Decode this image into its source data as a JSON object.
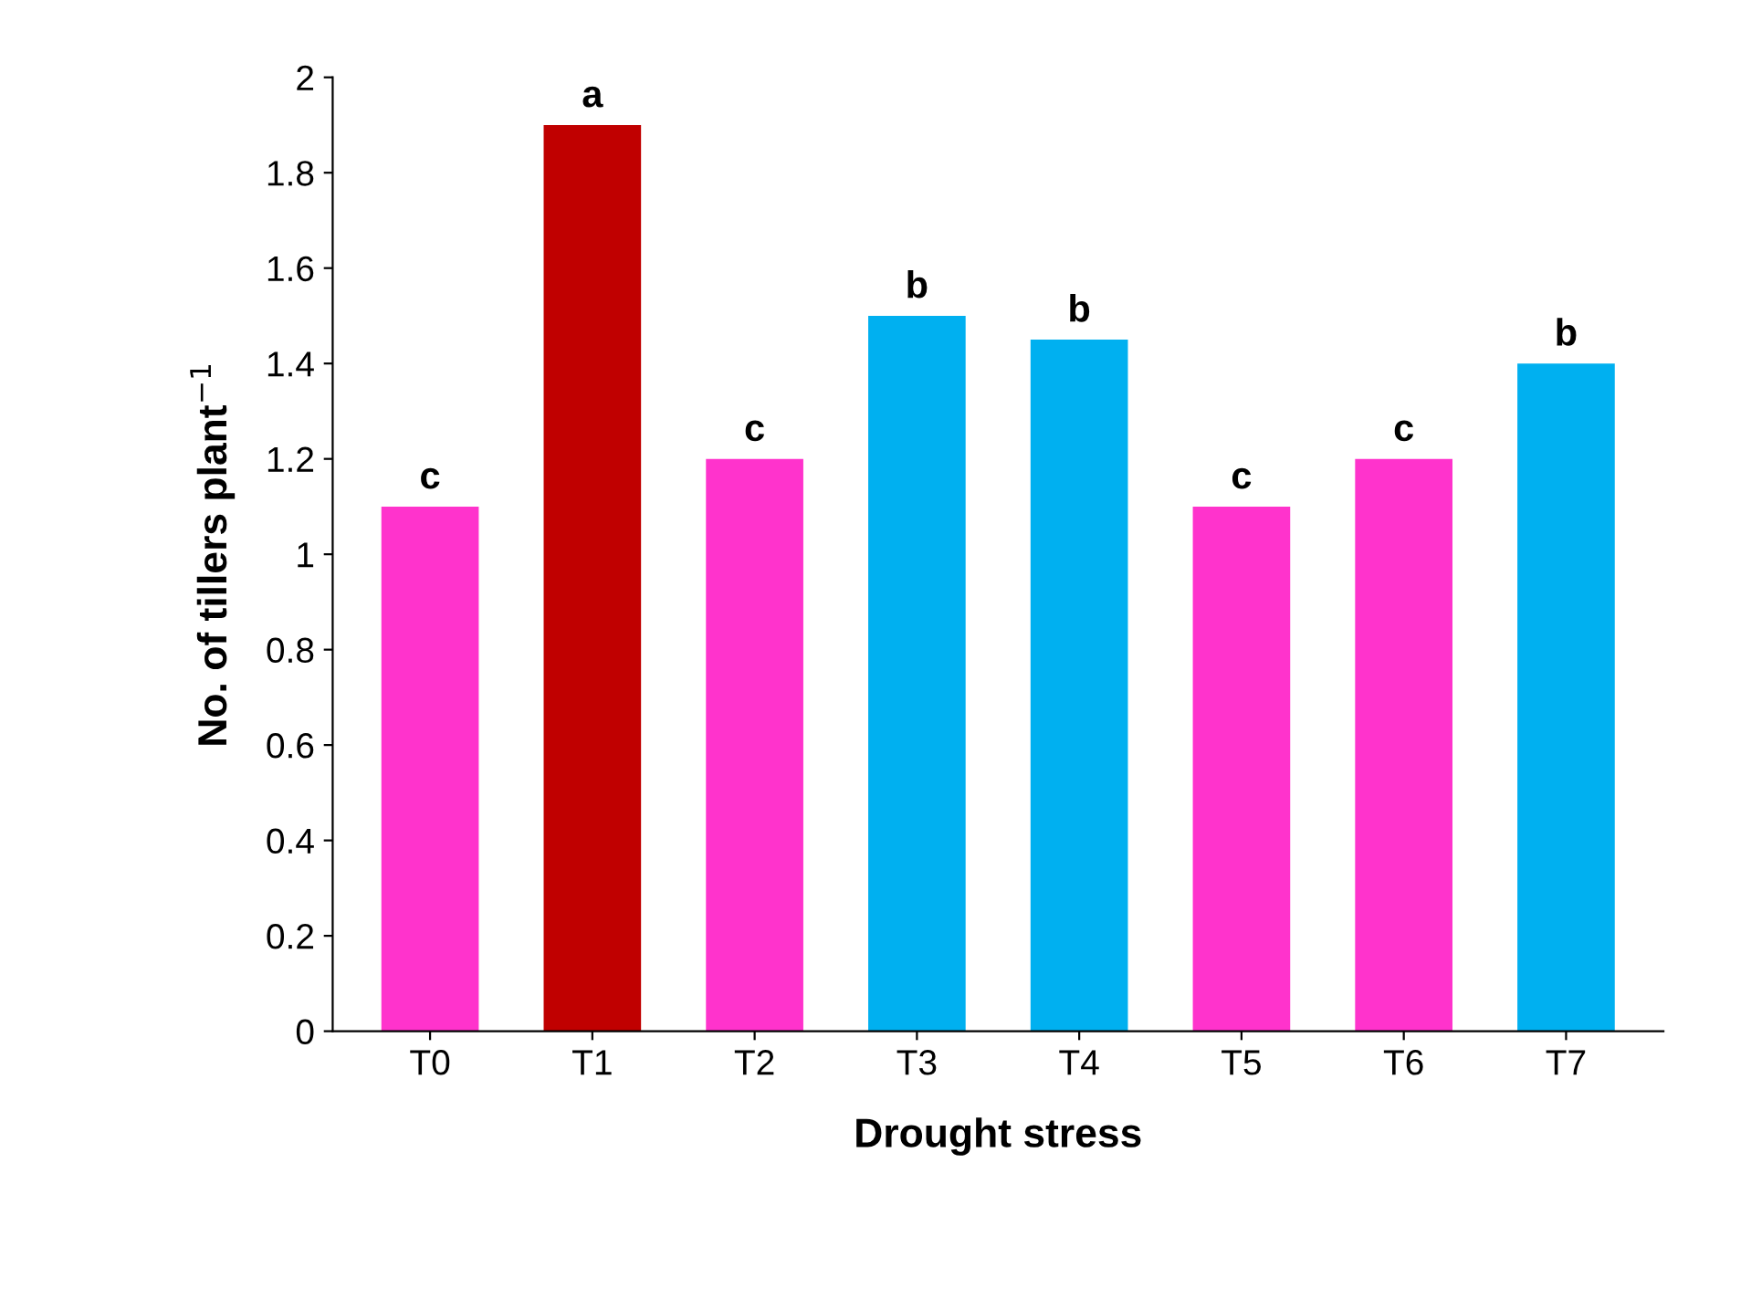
{
  "chart_data": {
    "type": "bar",
    "xlabel": "Drought stress",
    "ylabel": "No. of tillers plant$^{−1}$",
    "categories": [
      "T0",
      "T1",
      "T2",
      "T3",
      "T4",
      "T5",
      "T6",
      "T7"
    ],
    "values": [
      1.1,
      1.9,
      1.2,
      1.5,
      1.45,
      1.1,
      1.2,
      1.4
    ],
    "colors": [
      "#ff33cc",
      "#c00000",
      "#ff33cc",
      "#00b0f0",
      "#00b0f0",
      "#ff33cc",
      "#ff33cc",
      "#00b0f0"
    ],
    "value_labels": [
      "c",
      "a",
      "c",
      "b",
      "b",
      "c",
      "c",
      "b"
    ],
    "ylim": [
      0,
      2
    ],
    "yticks": [
      0,
      0.2,
      0.4,
      0.6,
      0.8,
      1,
      1.2,
      1.4,
      1.6,
      1.8,
      2
    ],
    "grid": false
  }
}
